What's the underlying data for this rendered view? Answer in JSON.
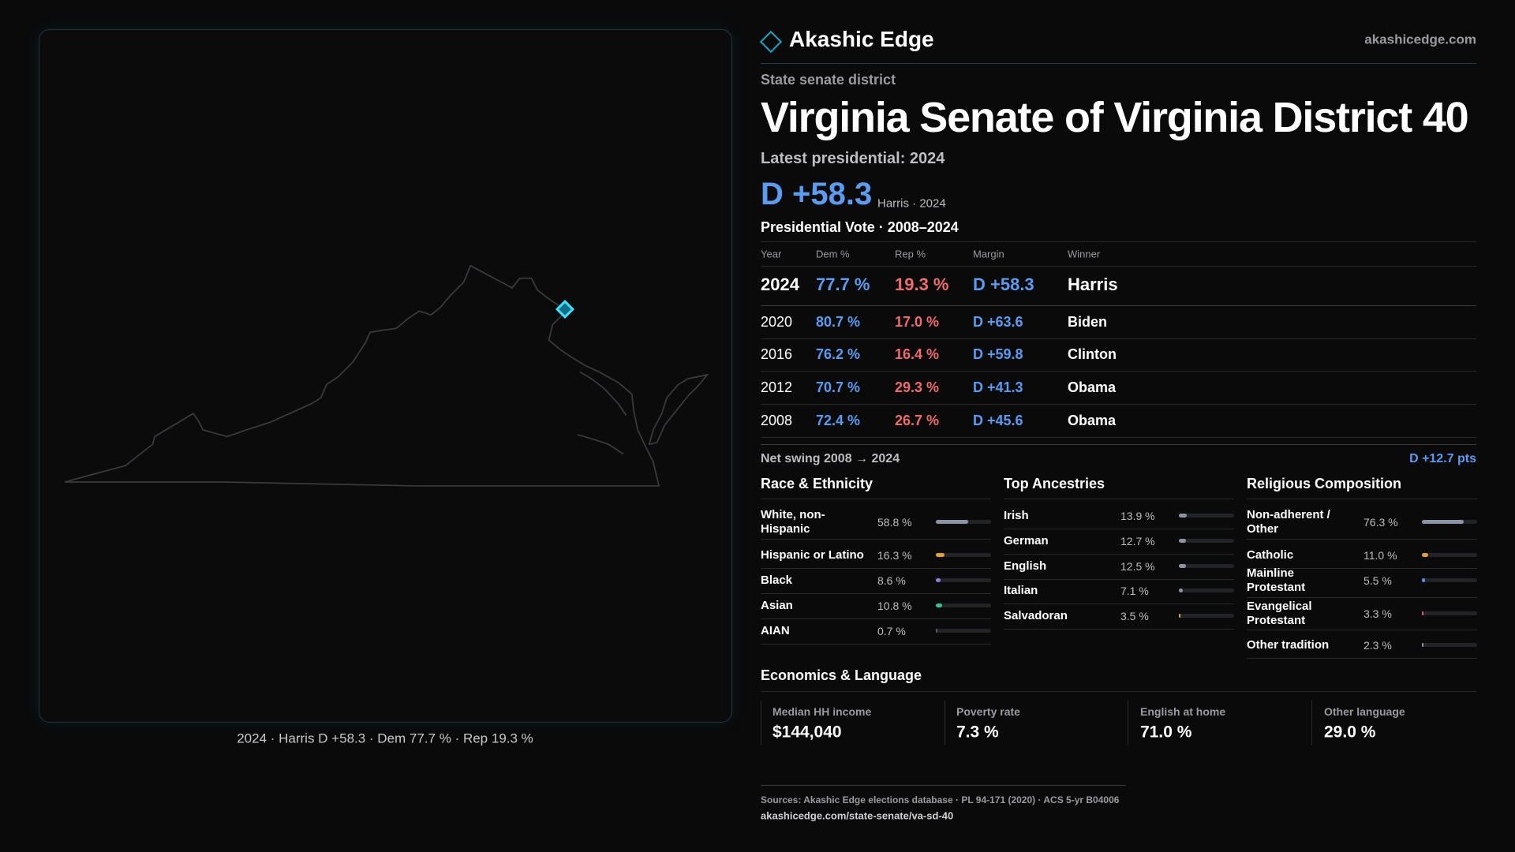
{
  "brand": {
    "name": "Akashic Edge",
    "site": "akashicedge.com"
  },
  "map": {
    "caption": "2024 · Harris D +58.3 · Dem 77.7 % · Rep 19.3 %"
  },
  "header": {
    "kicker": "State senate district",
    "title": "Virginia Senate of Virginia District 40",
    "latest": "Latest presidential: 2024",
    "margin": "D +58.3",
    "margin_note": "Harris · 2024"
  },
  "presidential": {
    "title": "Presidential Vote · 2008–2024",
    "columns": [
      "Year",
      "Dem %",
      "Rep %",
      "Margin",
      "Winner"
    ],
    "rows": [
      [
        "2024",
        "77.7 %",
        "19.3 %",
        "D +58.3",
        "Harris"
      ],
      [
        "2020",
        "80.7 %",
        "17.0 %",
        "D +63.6",
        "Biden"
      ],
      [
        "2016",
        "76.2 %",
        "16.4 %",
        "D +59.8",
        "Clinton"
      ],
      [
        "2012",
        "70.7 %",
        "29.3 %",
        "D +41.3",
        "Obama"
      ],
      [
        "2008",
        "72.4 %",
        "26.7 %",
        "D +45.6",
        "Obama"
      ]
    ]
  },
  "swing": {
    "label": "Net swing 2008 → 2024",
    "value": "D +12.7 pts"
  },
  "race": {
    "title": "Race & Ethnicity",
    "rows": [
      {
        "name": "White, non-Hispanic",
        "value": 58.8,
        "value_label": "58.8 %",
        "color": "#8b93a5"
      },
      {
        "name": "Hispanic or Latino",
        "value": 16.3,
        "value_label": "16.3 %",
        "color": "#e0a030"
      },
      {
        "name": "Black",
        "value": 8.6,
        "value_label": "8.6 %",
        "color": "#8b7ee0"
      },
      {
        "name": "Asian",
        "value": 10.8,
        "value_label": "10.8 %",
        "color": "#33c48c"
      },
      {
        "name": "AIAN",
        "value": 0.7,
        "value_label": "0.7 %",
        "color": "#555a66"
      }
    ]
  },
  "ancestry": {
    "title": "Top Ancestries",
    "rows": [
      {
        "name": "Irish",
        "value": 13.9,
        "value_label": "13.9 %",
        "color": "#8b93a5"
      },
      {
        "name": "German",
        "value": 12.7,
        "value_label": "12.7 %",
        "color": "#8b93a5"
      },
      {
        "name": "English",
        "value": 12.5,
        "value_label": "12.5 %",
        "color": "#8b93a5"
      },
      {
        "name": "Italian",
        "value": 7.1,
        "value_label": "7.1 %",
        "color": "#8b93a5"
      },
      {
        "name": "Salvadoran",
        "value": 3.5,
        "value_label": "3.5 %",
        "color": "#e0a030"
      }
    ]
  },
  "religion": {
    "title": "Religious Composition",
    "rows": [
      {
        "name": "Non-adherent / Other",
        "value": 76.3,
        "value_label": "76.3 %",
        "color": "#8b93a5"
      },
      {
        "name": "Catholic",
        "value": 11.0,
        "value_label": "11.0 %",
        "color": "#e0a030"
      },
      {
        "name": "Mainline Protestant",
        "value": 5.5,
        "value_label": "5.5 %",
        "color": "#4f8ff0"
      },
      {
        "name": "Evangelical Protestant",
        "value": 3.3,
        "value_label": "3.3 %",
        "color": "#e06060"
      },
      {
        "name": "Other tradition",
        "value": 2.3,
        "value_label": "2.3 %",
        "color": "#8b93a5"
      }
    ]
  },
  "economics": {
    "title": "Economics & Language",
    "items": [
      {
        "label": "Median HH income",
        "value": "$144,040"
      },
      {
        "label": "Poverty rate",
        "value": "7.3 %"
      },
      {
        "label": "English at home",
        "value": "71.0 %"
      },
      {
        "label": "Other language",
        "value": "29.0 %"
      }
    ]
  },
  "sources": {
    "text": "Sources: Akashic Edge elections database · PL 94-171 (2020) · ACS 5-yr B04006",
    "url": "akashicedge.com/state-senate/va-sd-40"
  }
}
